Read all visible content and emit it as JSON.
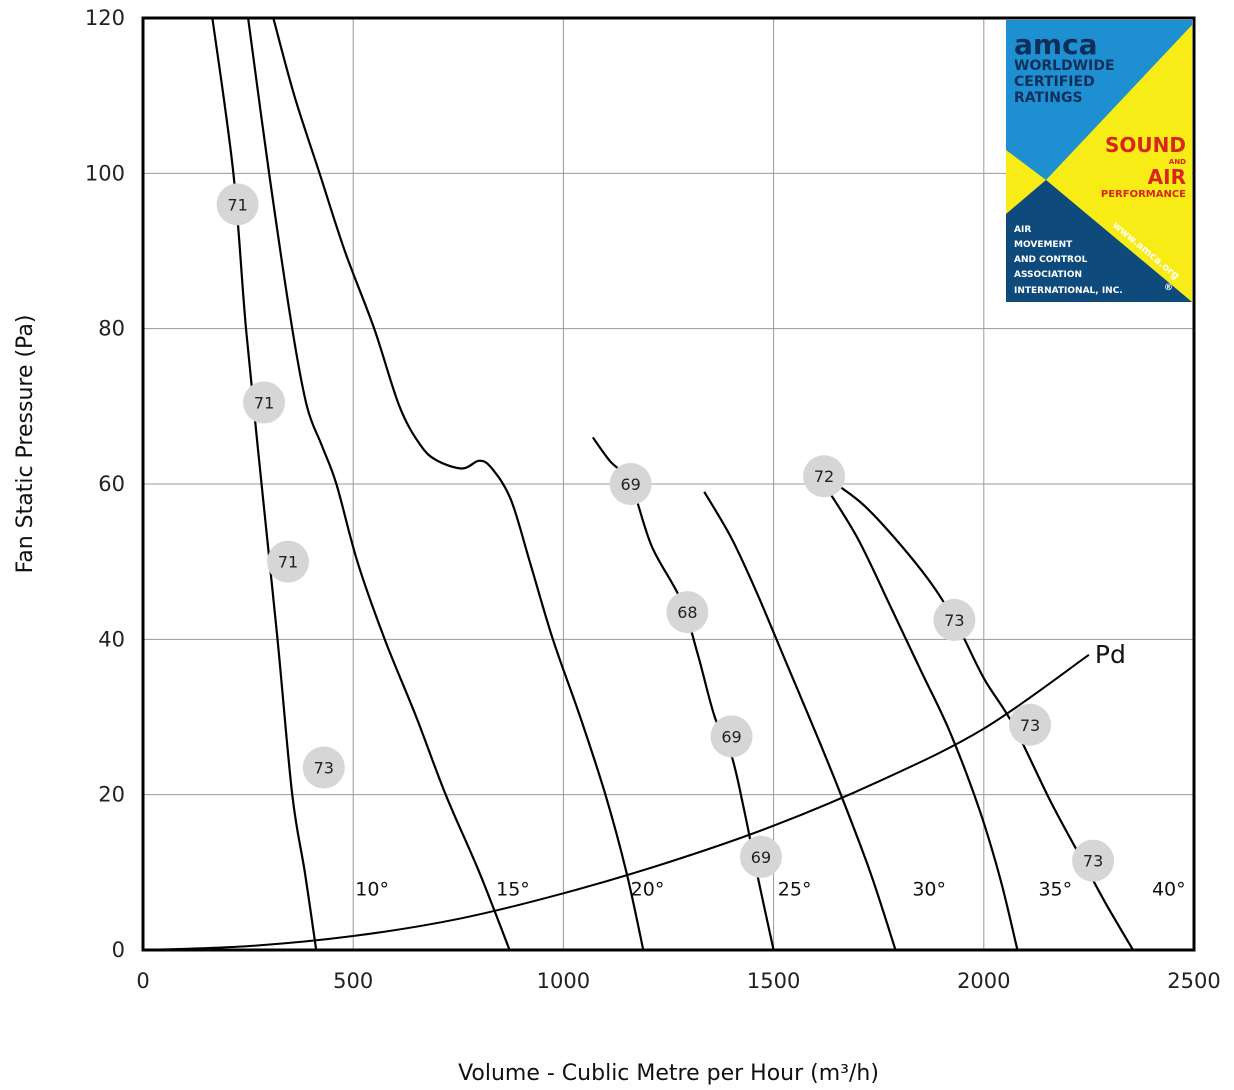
{
  "chart_data": {
    "type": "line",
    "title": "",
    "xlabel": "Volume - Cublic Metre per Hour (m³/h)",
    "ylabel": "Fan Static Pressure (Pa)",
    "xlim": [
      0,
      2500
    ],
    "ylim": [
      0,
      120
    ],
    "xticks": [
      0,
      500,
      1000,
      1500,
      2000,
      2500
    ],
    "yticks": [
      0,
      20,
      40,
      60,
      80,
      100,
      120
    ],
    "grid": true,
    "series": [
      {
        "name": "10°",
        "label_at": [
          505,
          7
        ],
        "points": [
          [
            165,
            120
          ],
          [
            215,
            100
          ],
          [
            245,
            80
          ],
          [
            282,
            60
          ],
          [
            320,
            40
          ],
          [
            355,
            20
          ],
          [
            385,
            10
          ],
          [
            412,
            0
          ]
        ],
        "markers": [
          {
            "x": 225,
            "y": 96,
            "v": "71"
          },
          {
            "x": 288,
            "y": 70.5,
            "v": "71"
          },
          {
            "x": 345,
            "y": 50,
            "v": "71"
          },
          {
            "x": 430,
            "y": 23.5,
            "v": "73"
          }
        ]
      },
      {
        "name": "15°",
        "label_at": [
          840,
          7
        ],
        "points": [
          [
            250,
            120
          ],
          [
            300,
            100
          ],
          [
            355,
            80
          ],
          [
            390,
            70
          ],
          [
            425,
            65
          ],
          [
            460,
            60
          ],
          [
            510,
            50
          ],
          [
            575,
            40
          ],
          [
            650,
            30
          ],
          [
            720,
            20
          ],
          [
            800,
            10
          ],
          [
            872,
            0
          ]
        ],
        "markers": []
      },
      {
        "name": "20°",
        "label_at": [
          1160,
          7
        ],
        "points": [
          [
            310,
            120
          ],
          [
            360,
            110
          ],
          [
            420,
            100
          ],
          [
            480,
            90
          ],
          [
            550,
            80
          ],
          [
            610,
            70
          ],
          [
            660,
            65
          ],
          [
            700,
            63
          ],
          [
            760,
            62
          ],
          [
            800,
            63
          ],
          [
            830,
            62
          ],
          [
            875,
            58
          ],
          [
            920,
            50
          ],
          [
            975,
            40
          ],
          [
            1040,
            30
          ],
          [
            1100,
            20
          ],
          [
            1150,
            10
          ],
          [
            1190,
            0
          ]
        ],
        "markers": []
      },
      {
        "name": "25°",
        "label_at": [
          1510,
          7
        ],
        "points": [
          [
            1070,
            66
          ],
          [
            1110,
            63
          ],
          [
            1160,
            60
          ],
          [
            1210,
            52
          ],
          [
            1280,
            45
          ],
          [
            1320,
            38
          ],
          [
            1360,
            30
          ],
          [
            1400,
            25
          ],
          [
            1430,
            18
          ],
          [
            1460,
            10
          ],
          [
            1500,
            0
          ]
        ],
        "markers": [
          {
            "x": 1160,
            "y": 60,
            "v": "69"
          },
          {
            "x": 1295,
            "y": 43.5,
            "v": "68"
          },
          {
            "x": 1400,
            "y": 27.5,
            "v": "69"
          },
          {
            "x": 1470,
            "y": 12,
            "v": "69"
          }
        ]
      },
      {
        "name": "30°",
        "label_at": [
          1830,
          7
        ],
        "points": [
          [
            1335,
            59
          ],
          [
            1400,
            53
          ],
          [
            1460,
            46
          ],
          [
            1530,
            37
          ],
          [
            1600,
            28
          ],
          [
            1660,
            20
          ],
          [
            1730,
            10
          ],
          [
            1790,
            0
          ]
        ],
        "markers": []
      },
      {
        "name": "35°",
        "label_at": [
          2130,
          7
        ],
        "points": [
          [
            1620,
            60
          ],
          [
            1700,
            53
          ],
          [
            1780,
            44
          ],
          [
            1850,
            36
          ],
          [
            1920,
            28
          ],
          [
            1990,
            18
          ],
          [
            2040,
            9
          ],
          [
            2080,
            0
          ]
        ],
        "markers": []
      },
      {
        "name": "40°",
        "label_at": [
          2400,
          7
        ],
        "points": [
          [
            1620,
            61
          ],
          [
            1720,
            57
          ],
          [
            1850,
            49
          ],
          [
            1930,
            42.5
          ],
          [
            2000,
            35
          ],
          [
            2070,
            29
          ],
          [
            2160,
            19
          ],
          [
            2240,
            11
          ],
          [
            2290,
            6
          ],
          [
            2355,
            0
          ]
        ],
        "markers": [
          {
            "x": 1620,
            "y": 61,
            "v": "72"
          },
          {
            "x": 1930,
            "y": 42.5,
            "v": "73"
          },
          {
            "x": 2110,
            "y": 29,
            "v": "73"
          },
          {
            "x": 2260,
            "y": 11.5,
            "v": "73"
          }
        ]
      }
    ],
    "pd_curve": {
      "name": "Pd",
      "points": [
        [
          0,
          0
        ],
        [
          250,
          0.5
        ],
        [
          500,
          1.8
        ],
        [
          750,
          4.0
        ],
        [
          1000,
          7.3
        ],
        [
          1250,
          11.3
        ],
        [
          1500,
          16.0
        ],
        [
          1750,
          21.7
        ],
        [
          2000,
          28.5
        ],
        [
          2250,
          38.0
        ]
      ]
    }
  },
  "logo": {
    "line1": "amca",
    "line2": "WORLDWIDE",
    "line3": "CERTIFIED",
    "line4": "RATINGS",
    "sound": "SOUND",
    "and": "AND",
    "air": "AIR",
    "performance": "PERFORMANCE",
    "org1": "AIR",
    "org2": "MOVEMENT",
    "org3": "AND CONTROL",
    "org4": "ASSOCIATION",
    "org5": "INTERNATIONAL, INC.",
    "reg": "®",
    "url": "www.amca.org",
    "colors": {
      "blue": "#1e8fd0",
      "yellow": "#f7ec16",
      "navy": "#0e4a7c",
      "red": "#d8261b"
    }
  }
}
